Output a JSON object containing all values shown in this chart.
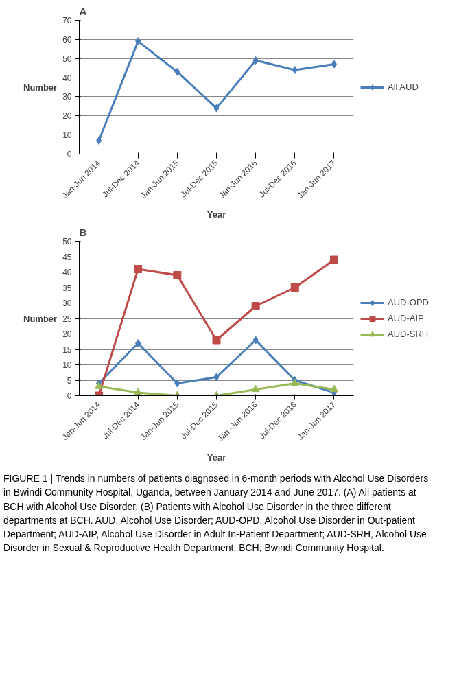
{
  "chart_data": [
    {
      "type": "line",
      "title": "A",
      "xlabel": "Year",
      "ylabel": "Number",
      "categories": [
        "Jan-Jun 2014",
        "Jul-Dec 2014",
        "Jan-Jun 2015",
        "Jul-Dec 2015",
        "Jan-Jun 2016",
        "Jul-Dec 2016",
        "Jan-Jun 2017"
      ],
      "series": [
        {
          "name": "All AUD",
          "color": "#4a7ebb",
          "marker": "diamond",
          "values": [
            7,
            59,
            43,
            24,
            49,
            44,
            47
          ]
        }
      ],
      "ylim": [
        0,
        70
      ],
      "yticks": [
        0,
        10,
        20,
        30,
        40,
        50,
        60,
        70
      ],
      "grid": "y",
      "legend": "right",
      "line_style": "solid"
    },
    {
      "type": "line",
      "title": "B",
      "xlabel": "Year",
      "ylabel": "Number",
      "categories": [
        "Jan-Jun 2014",
        "Jul-Dec 2014",
        "Jan-Jun 2015",
        "Jul-Dec 2015",
        "Jan -Jun 2016",
        "Jul-Dec 2016",
        "Jan-Jun 2017"
      ],
      "series": [
        {
          "name": "AUD-OPD",
          "color": "#4a7ebb",
          "marker": "diamond",
          "values": [
            4,
            17,
            4,
            6,
            18,
            5,
            1
          ]
        },
        {
          "name": "AUD-AIP",
          "color": "#be4b48",
          "marker": "square",
          "values": [
            0,
            41,
            39,
            18,
            29,
            35,
            44
          ]
        },
        {
          "name": "AUD-SRH",
          "color": "#98b954",
          "marker": "triangle",
          "values": [
            3,
            1,
            0,
            0,
            2,
            4,
            2
          ]
        }
      ],
      "ylim": [
        0,
        50
      ],
      "yticks": [
        0,
        5,
        10,
        15,
        20,
        25,
        30,
        35,
        40,
        45,
        50
      ],
      "grid": "y",
      "legend": "right",
      "line_style": "solid",
      "annotations": [
        "FIGURE 1 | Trends in numbers of patients diagnosed in 6-month periods with Alcohol Use Disorders in Bwindi Community Hospital, Uganda, between January 2014 and June 2017. (A) All patients at BCH with Alcohol Use Disorder. (B) Patients with Alcohol Use Disorder in the three different departments at BCH. AUD, Alcohol Use Disorder; AUD-OPD, Alcohol Use Disorder in Out-patient Department; AUD-AIP, Alcohol Use Disorder in Adult In-Patient Department; AUD-SRH, Alcohol Use Disorder in Sexual & Reproductive Health Department; BCH, Bwindi Community Hospital."
      ]
    }
  ]
}
